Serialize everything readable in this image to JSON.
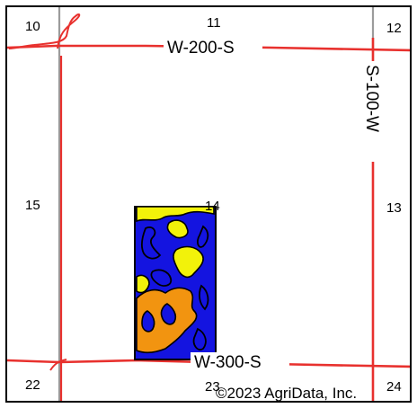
{
  "map": {
    "sections": [
      {
        "id": "s10",
        "label": "10"
      },
      {
        "id": "s11",
        "label": "11"
      },
      {
        "id": "s12",
        "label": "12"
      },
      {
        "id": "s15",
        "label": "15"
      },
      {
        "id": "s14",
        "label": "14"
      },
      {
        "id": "s13",
        "label": "13"
      },
      {
        "id": "s22",
        "label": "22"
      },
      {
        "id": "s23",
        "label": "23"
      },
      {
        "id": "s24",
        "label": "24"
      }
    ],
    "roads": {
      "north": "W-200-S",
      "south": "W-300-S",
      "east": "S-100-W"
    },
    "copyright": "©2023 AgriData, Inc.",
    "colors": {
      "road": "#e8312e",
      "section_line": "#9b9b9b",
      "soil_blue": "#1414e0",
      "soil_yellow": "#f2f20a",
      "soil_orange": "#f29410",
      "outline": "#000000"
    }
  }
}
